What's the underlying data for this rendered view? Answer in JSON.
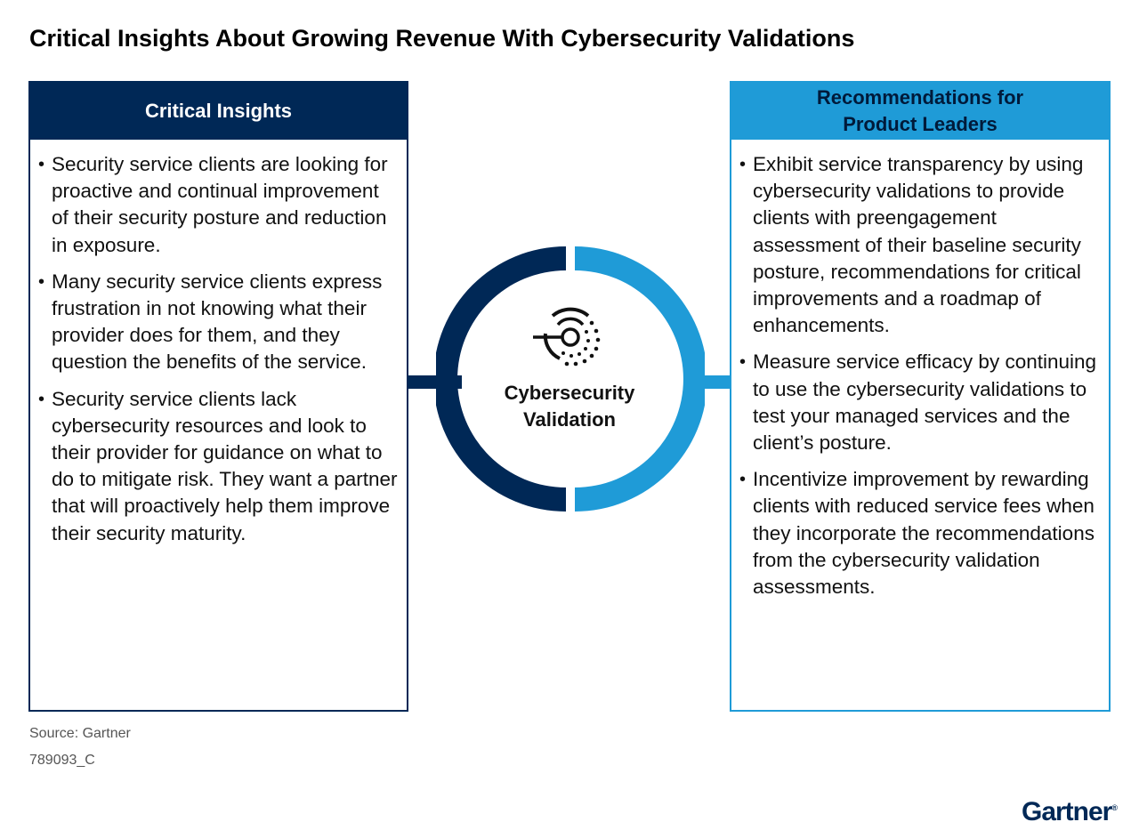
{
  "title": "Critical Insights About Growing Revenue With Cybersecurity Validations",
  "left_panel": {
    "heading": "Critical Insights",
    "items": [
      "Security service clients are looking for proactive and continual improvement of their security posture and reduction in exposure.",
      "Many security service clients express frustration in not knowing what their provider does for them, and they question the benefits of the service.",
      "Security service clients lack cybersecurity resources and look to their provider for guidance on what to do to mitigate risk. They want a partner that will proactively help them improve their security maturity."
    ]
  },
  "center": {
    "label_line1": "Cybersecurity",
    "label_line2": "Validation",
    "icon": "cybersecurity-target-icon"
  },
  "right_panel": {
    "heading_line1": "Recommendations for",
    "heading_line2": "Product Leaders",
    "items": [
      "Exhibit service transparency by using cybersecurity validations to provide clients with preengagement assessment of their baseline security posture, recommendations for critical improvements and a roadmap of enhancements.",
      "Measure service efficacy by continuing to use the cybersecurity validations to test your managed services and the client’s posture.",
      "Incentivize improvement by rewarding clients with reduced service fees when they incorporate the recommendations from the cybersecurity validation assessments."
    ]
  },
  "footer": {
    "source": "Source: Gartner",
    "code": "789093_C",
    "logo": "Gartner",
    "logo_mark": "®"
  },
  "colors": {
    "navy": "#002856",
    "blue": "#1f9bd7"
  }
}
